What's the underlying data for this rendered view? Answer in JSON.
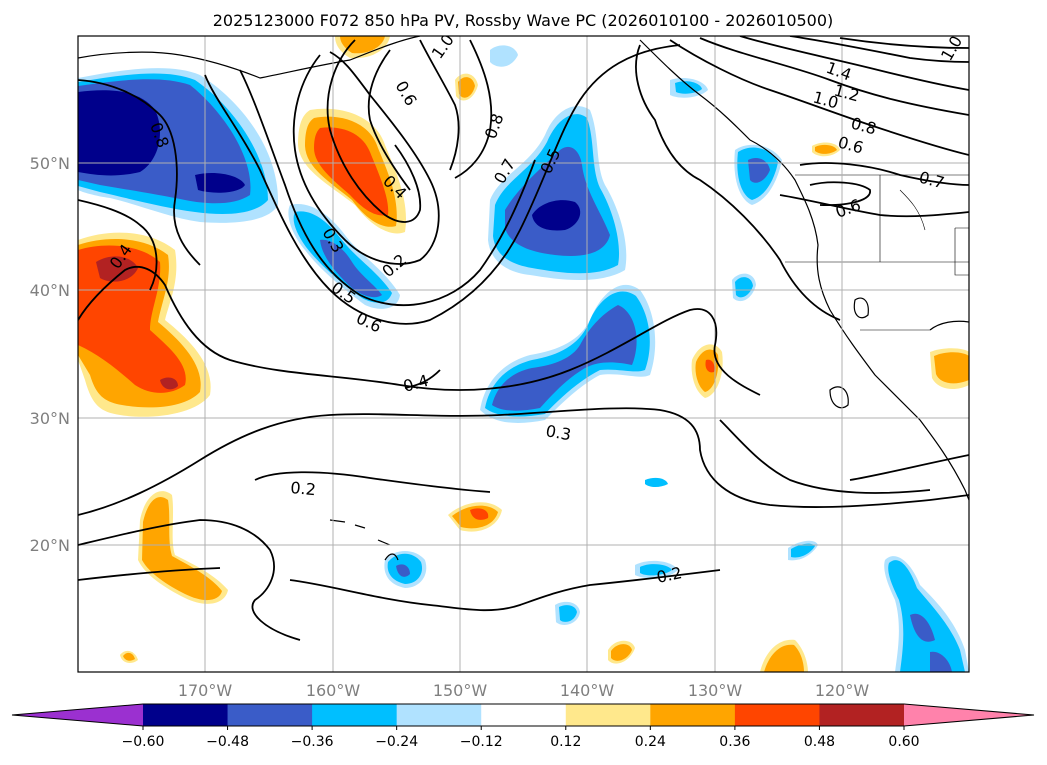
{
  "title": "2025123000 F072 850 hPa PV, Rossby Wave PC (2026010100 - 2026010500)",
  "map": {
    "lat_labels": [
      "50°N",
      "40°N",
      "30°N",
      "20°N"
    ],
    "lon_labels": [
      "170°W",
      "160°W",
      "150°W",
      "140°W",
      "130°W",
      "120°W"
    ],
    "lon_range": [
      -180,
      -110
    ],
    "lat_range": [
      10,
      60
    ],
    "contour_labels": [
      "0.8",
      "0.6",
      "1.0",
      "0.8",
      "0.7",
      "0.5",
      "0.4",
      "0.3",
      "0.2",
      "0.5",
      "0.6",
      "0.4",
      "0.4",
      "0.3",
      "0.2",
      "0.2",
      "1.4",
      "1.2",
      "1.0",
      "0.8",
      "0.6",
      "0.6",
      "0.7",
      "1.0"
    ]
  },
  "colorbar": {
    "ticks": [
      "−0.60",
      "−0.48",
      "−0.36",
      "−0.24",
      "−0.12",
      "0.12",
      "0.24",
      "0.36",
      "0.48",
      "0.60"
    ],
    "colors": [
      "#9b30d0",
      "#00008b",
      "#3a5cc8",
      "#00bfff",
      "#b0e2ff",
      "#ffffff",
      "#ffe88c",
      "#ffa500",
      "#ff4500",
      "#b22222",
      "#ff82ab"
    ]
  },
  "palette": {
    "dark_blue": "#00008b",
    "royal_blue": "#3a5cc8",
    "deep_sky": "#00bfff",
    "light_blue": "#b0e2ff",
    "light_yellow": "#ffe88c",
    "orange": "#ffa500",
    "orange_red": "#ff4500",
    "firebrick": "#b22222"
  }
}
